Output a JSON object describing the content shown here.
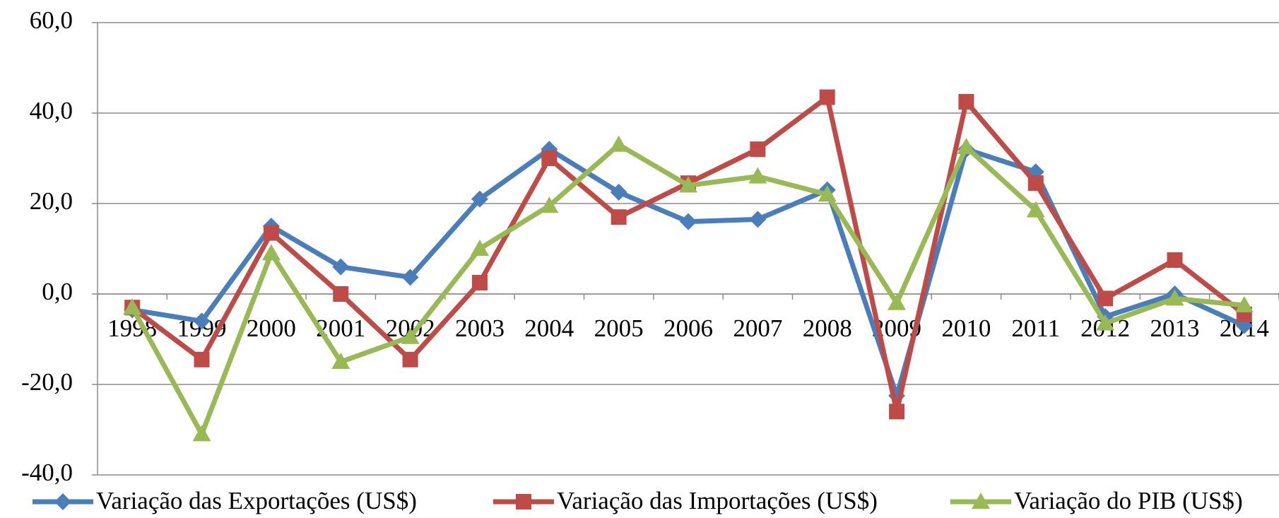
{
  "chart_data": {
    "type": "line",
    "categories": [
      "1998",
      "1999",
      "2000",
      "2001",
      "2002",
      "2003",
      "2004",
      "2005",
      "2006",
      "2007",
      "2008",
      "2009",
      "2010",
      "2011",
      "2012",
      "2013",
      "2014"
    ],
    "series": [
      {
        "name": "Variação das Exportações (US$)",
        "color": "#4a7ebb",
        "marker": "diamond",
        "values": [
          -3.5,
          -6,
          15,
          6,
          3.7,
          21,
          32,
          22.5,
          16,
          16.5,
          23,
          -22.5,
          32,
          27,
          -5,
          0,
          -7
        ]
      },
      {
        "name": "Variação das Importações (US$)",
        "color": "#be4b48",
        "marker": "square",
        "values": [
          -3,
          -14.5,
          13.5,
          0,
          -14.5,
          2.5,
          30,
          17,
          24.5,
          32,
          43.5,
          -26,
          42.5,
          24.5,
          -1,
          7.5,
          -4.5
        ]
      },
      {
        "name": "Variação do PIB (US$)",
        "color": "#98b954",
        "marker": "triangle",
        "values": [
          -3,
          -31,
          9,
          -15,
          -9.5,
          10,
          19.5,
          33,
          24,
          26,
          22,
          -2,
          32.5,
          18.5,
          -6.5,
          -1,
          -2.5
        ]
      }
    ],
    "ylim": [
      -40,
      60
    ],
    "yticks": [
      {
        "value": -40,
        "label": "-40,0"
      },
      {
        "value": -20,
        "label": "-20,0"
      },
      {
        "value": 0,
        "label": "0,0"
      },
      {
        "value": 20,
        "label": "20,0"
      },
      {
        "value": 40,
        "label": "40,0"
      },
      {
        "value": 60,
        "label": "60,0"
      }
    ],
    "grid": true
  }
}
